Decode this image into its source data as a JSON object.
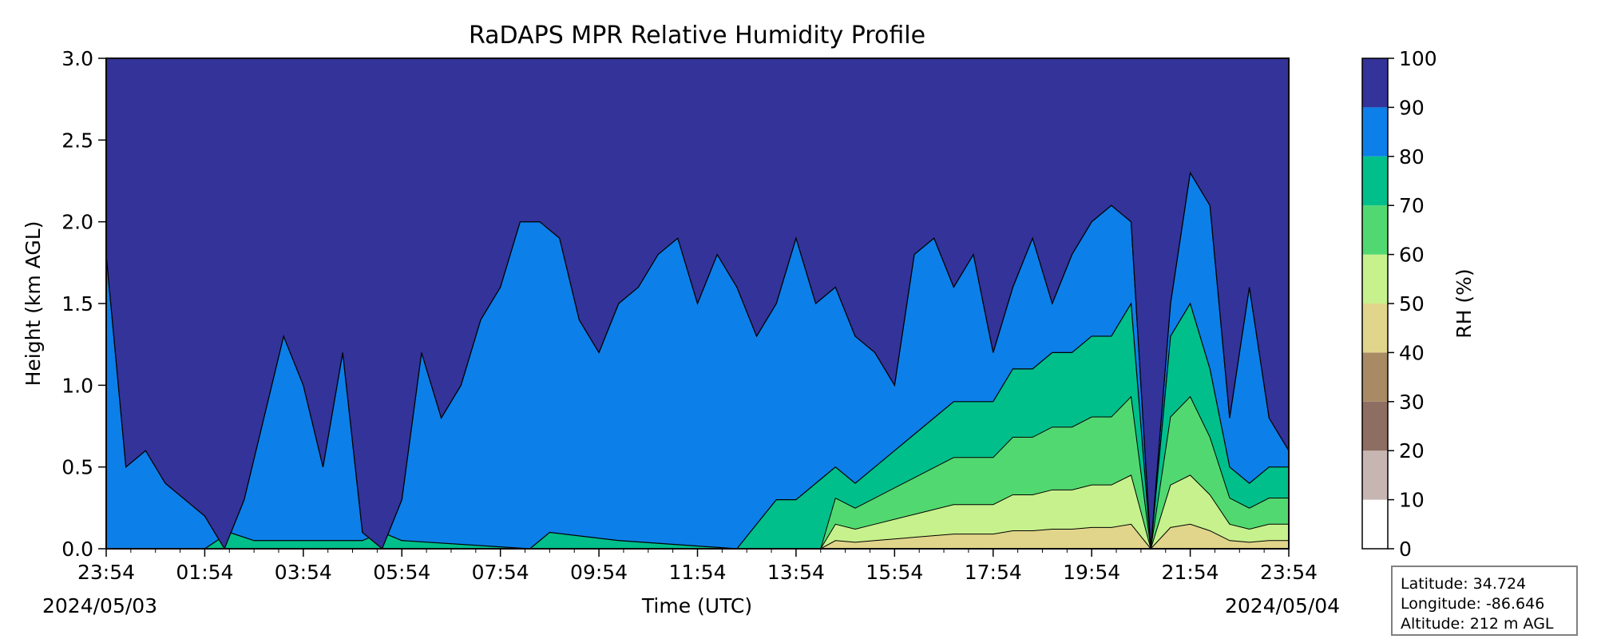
{
  "chart_data": {
    "type": "heatmap",
    "title": "RaDAPS MPR Relative Humidity Profile",
    "xlabel": "Time (UTC)",
    "ylabel": "Height (km AGL)",
    "xlim_hours": [
      0,
      24
    ],
    "ylim": [
      0,
      3
    ],
    "x_tick_hours": [
      0,
      2,
      4,
      6,
      8,
      10,
      12,
      14,
      16,
      18,
      20,
      22,
      24
    ],
    "x_tick_labels": [
      "23:54",
      "01:54",
      "03:54",
      "05:54",
      "07:54",
      "09:54",
      "11:54",
      "13:54",
      "15:54",
      "17:54",
      "19:54",
      "21:54",
      "23:54"
    ],
    "y_ticks": [
      0.0,
      0.5,
      1.0,
      1.5,
      2.0,
      2.5,
      3.0
    ],
    "y_tick_labels": [
      "0.0",
      "0.5",
      "1.0",
      "1.5",
      "2.0",
      "2.5",
      "3.0"
    ],
    "start_date": "2024/05/03",
    "end_date": "2024/05/04",
    "colorbar": {
      "label": "RH (%)",
      "levels": [
        0,
        10,
        20,
        30,
        40,
        50,
        60,
        70,
        80,
        90,
        100
      ],
      "level_labels": [
        "0",
        "10",
        "20",
        "30",
        "40",
        "50",
        "60",
        "70",
        "80",
        "90",
        "100"
      ],
      "colors": [
        "#ffffff",
        "#c6b5b0",
        "#8e6e62",
        "#a88a64",
        "#e1d58b",
        "#c6f18c",
        "#52d870",
        "#00bf8a",
        "#0d7fe8",
        "#333399"
      ]
    },
    "rh_bands": [
      {
        "band": "90-100",
        "bottom": [
          [
            0,
            1.8
          ],
          [
            0.4,
            0.5
          ],
          [
            0.8,
            0.6
          ],
          [
            1.2,
            0.4
          ],
          [
            1.6,
            0.3
          ],
          [
            2.0,
            0.2
          ],
          [
            2.4,
            0.0
          ],
          [
            2.8,
            0.3
          ],
          [
            3.2,
            0.8
          ],
          [
            3.6,
            1.3
          ],
          [
            4.0,
            1.0
          ],
          [
            4.4,
            0.5
          ],
          [
            4.8,
            1.2
          ],
          [
            5.2,
            0.1
          ],
          [
            5.6,
            0.0
          ],
          [
            6.0,
            0.3
          ],
          [
            6.4,
            1.2
          ],
          [
            6.8,
            0.8
          ],
          [
            7.2,
            1.0
          ],
          [
            7.6,
            1.4
          ],
          [
            8.0,
            1.6
          ],
          [
            8.4,
            2.0
          ],
          [
            8.8,
            2.0
          ],
          [
            9.2,
            1.9
          ],
          [
            9.6,
            1.4
          ],
          [
            10.0,
            1.2
          ],
          [
            10.4,
            1.5
          ],
          [
            10.8,
            1.6
          ],
          [
            11.2,
            1.8
          ],
          [
            11.6,
            1.9
          ],
          [
            12.0,
            1.5
          ],
          [
            12.4,
            1.8
          ],
          [
            12.8,
            1.6
          ],
          [
            13.2,
            1.3
          ],
          [
            13.6,
            1.5
          ],
          [
            14.0,
            1.9
          ],
          [
            14.4,
            1.5
          ],
          [
            14.8,
            1.6
          ],
          [
            15.2,
            1.3
          ],
          [
            15.6,
            1.2
          ],
          [
            16.0,
            1.0
          ],
          [
            16.4,
            1.8
          ],
          [
            16.8,
            1.9
          ],
          [
            17.2,
            1.6
          ],
          [
            17.6,
            1.8
          ],
          [
            18.0,
            1.2
          ],
          [
            18.4,
            1.6
          ],
          [
            18.8,
            1.9
          ],
          [
            19.2,
            1.5
          ],
          [
            19.6,
            1.8
          ],
          [
            20.0,
            2.0
          ],
          [
            20.4,
            2.1
          ],
          [
            20.8,
            2.0
          ],
          [
            21.2,
            0.0
          ],
          [
            21.6,
            1.5
          ],
          [
            22.0,
            2.3
          ],
          [
            22.4,
            2.1
          ],
          [
            22.8,
            0.8
          ],
          [
            23.2,
            1.6
          ],
          [
            23.6,
            0.8
          ],
          [
            24,
            0.6
          ]
        ]
      },
      {
        "band": "80-90",
        "bottom": [
          [
            0,
            0.0
          ],
          [
            2.0,
            0.0
          ],
          [
            2.5,
            0.1
          ],
          [
            3.0,
            0.05
          ],
          [
            5.2,
            0.05
          ],
          [
            5.6,
            0.1
          ],
          [
            6.0,
            0.05
          ],
          [
            8.6,
            0.0
          ],
          [
            9.0,
            0.1
          ],
          [
            10.4,
            0.05
          ],
          [
            12.8,
            0.0
          ],
          [
            13.2,
            0.15
          ],
          [
            13.6,
            0.3
          ],
          [
            14.0,
            0.3
          ],
          [
            14.4,
            0.4
          ],
          [
            14.8,
            0.5
          ],
          [
            15.2,
            0.4
          ],
          [
            15.6,
            0.5
          ],
          [
            16.0,
            0.6
          ],
          [
            16.4,
            0.7
          ],
          [
            16.8,
            0.8
          ],
          [
            17.2,
            0.9
          ],
          [
            17.6,
            0.9
          ],
          [
            18.0,
            0.9
          ],
          [
            18.4,
            1.1
          ],
          [
            18.8,
            1.1
          ],
          [
            19.2,
            1.2
          ],
          [
            19.6,
            1.2
          ],
          [
            20.0,
            1.3
          ],
          [
            20.4,
            1.3
          ],
          [
            20.8,
            1.5
          ],
          [
            21.2,
            0.0
          ],
          [
            21.6,
            1.3
          ],
          [
            22.0,
            1.5
          ],
          [
            22.4,
            1.1
          ],
          [
            22.8,
            0.5
          ],
          [
            23.2,
            0.4
          ],
          [
            23.6,
            0.5
          ],
          [
            24,
            0.5
          ]
        ]
      }
    ]
  },
  "info": {
    "latitude": "Latitude: 34.724",
    "longitude": "Longitude: -86.646",
    "altitude": "Altitude: 212 m AGL"
  }
}
